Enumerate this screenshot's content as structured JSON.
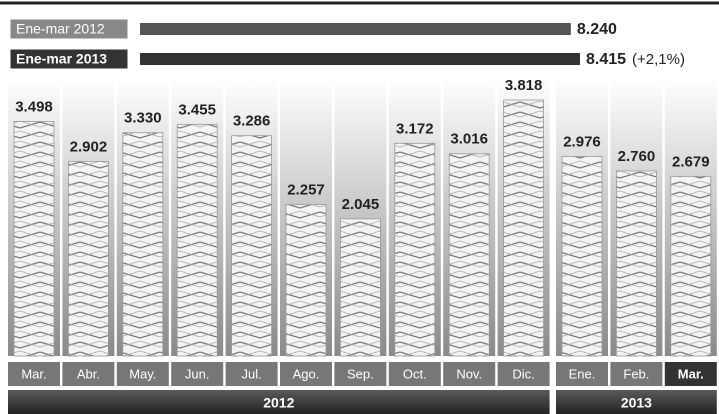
{
  "chart_data": {
    "type": "bar",
    "summary": [
      {
        "label": "Ene-mar 2012",
        "value": 8240,
        "value_label": "8.240"
      },
      {
        "label": "Ene-mar 2013",
        "value": 8415,
        "value_label": "8.415",
        "note": "(+2,1%)"
      }
    ],
    "groups": [
      {
        "name": "2012",
        "categories": [
          "Mar.",
          "Abr.",
          "May.",
          "Jun.",
          "Jul.",
          "Ago.",
          "Sep.",
          "Oct.",
          "Nov.",
          "Dic."
        ],
        "values": [
          3498,
          2902,
          3330,
          3455,
          3286,
          2257,
          2045,
          3172,
          3016,
          3818
        ],
        "value_labels": [
          "3.498",
          "2.902",
          "3.330",
          "3.455",
          "3.286",
          "2.257",
          "2.045",
          "3.172",
          "3.016",
          "3.818"
        ]
      },
      {
        "name": "2013",
        "categories": [
          "Ene.",
          "Feb.",
          "Mar."
        ],
        "values": [
          2976,
          2760,
          2679
        ],
        "value_labels": [
          "2.976",
          "2.760",
          "2.679"
        ]
      }
    ]
  }
}
